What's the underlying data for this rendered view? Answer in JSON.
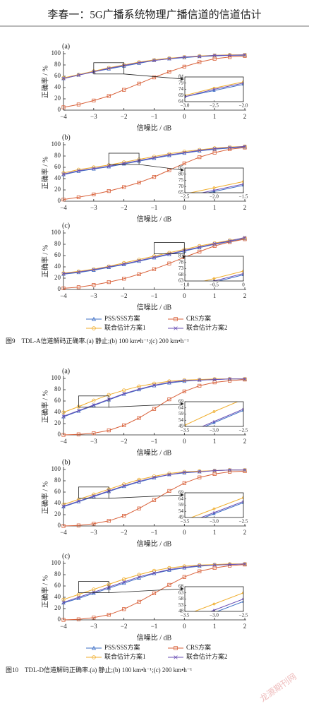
{
  "header": "李春一：5G广播系统物理广播信道的信道估计",
  "captions": [
    "图9　TDL-A信道解码正确率.(a) 静止;(b) 100 km•h⁻¹;(c) 200 km•h⁻¹",
    "图10　TDL-D信道解码正确率.(a) 静止;(b) 100 km•h⁻¹;(c) 200 km•h⁻¹"
  ],
  "watermark": "龙源期刊网",
  "chart_data": [
    {
      "type": "line",
      "label": "(a)",
      "xlabel": "信噪比 / dB",
      "ylabel": "正确率 / %",
      "x": [
        -4,
        -3.5,
        -3,
        -2.5,
        -2,
        -1.5,
        -1,
        -0.5,
        0,
        0.5,
        1,
        1.5,
        2
      ],
      "xlim": [
        -4,
        2
      ],
      "xticks": [
        {
          "value": -4,
          "label": "−4"
        },
        {
          "value": -3,
          "label": "−3"
        },
        {
          "value": -2,
          "label": "−2"
        },
        {
          "value": -1,
          "label": "−1"
        },
        0,
        1,
        2
      ],
      "ylim": [
        0,
        100
      ],
      "yticks": [
        0,
        20,
        40,
        60,
        80,
        100
      ],
      "series": [
        {
          "name": "PSS/SSS方案",
          "color": "#3d6fc6",
          "marker": "triangle",
          "values": [
            56,
            62,
            68,
            73,
            78,
            83,
            88,
            91,
            93,
            95,
            96,
            97,
            97
          ]
        },
        {
          "name": "CRS方案",
          "color": "#d9623b",
          "marker": "square",
          "values": [
            5,
            10,
            17,
            25,
            36,
            47,
            58,
            68,
            77,
            85,
            91,
            94,
            96
          ]
        },
        {
          "name": "联合估计方案1",
          "color": "#f0ae2e",
          "marker": "circle",
          "values": [
            57,
            63,
            69,
            75,
            80,
            85,
            89,
            92,
            94,
            96,
            97,
            98,
            98
          ]
        },
        {
          "name": "联合估计方案2",
          "color": "#6a4fb5",
          "marker": "x",
          "values": [
            56,
            62,
            68,
            74,
            79,
            84,
            88,
            91,
            94,
            95,
            97,
            97,
            98
          ]
        }
      ],
      "inset": {
        "xlim": [
          -3,
          -2
        ],
        "ylim": [
          64,
          84
        ],
        "xticks": [
          {
            "value": -3,
            "label": "−3.0"
          },
          {
            "value": -2.5,
            "label": "−2.5"
          },
          {
            "value": -2,
            "label": "−2.0"
          }
        ],
        "yticks": [
          64,
          69,
          74,
          79,
          84
        ]
      }
    },
    {
      "type": "line",
      "label": "(b)",
      "xlabel": "信噪比 / dB",
      "ylabel": "正确率 / %",
      "x": [
        -4,
        -3.5,
        -3,
        -2.5,
        -2,
        -1.5,
        -1,
        -0.5,
        0,
        0.5,
        1,
        1.5,
        2
      ],
      "xlim": [
        -4,
        2
      ],
      "xticks": [
        {
          "value": -4,
          "label": "−4"
        },
        {
          "value": -3,
          "label": "−3"
        },
        {
          "value": -2,
          "label": "−2"
        },
        {
          "value": -1,
          "label": "−1"
        },
        0,
        1,
        2
      ],
      "ylim": [
        0,
        100
      ],
      "yticks": [
        0,
        20,
        40,
        60,
        80,
        100
      ],
      "series": [
        {
          "name": "PSS/SSS方案",
          "color": "#3d6fc6",
          "marker": "triangle",
          "values": [
            47,
            53,
            57,
            61,
            66,
            71,
            76,
            81,
            85,
            89,
            92,
            94,
            96
          ]
        },
        {
          "name": "CRS方案",
          "color": "#d9623b",
          "marker": "square",
          "values": [
            3,
            7,
            12,
            18,
            25,
            33,
            43,
            55,
            67,
            78,
            86,
            92,
            95
          ]
        },
        {
          "name": "联合估计方案1",
          "color": "#f0ae2e",
          "marker": "circle",
          "values": [
            50,
            56,
            60,
            64,
            69,
            74,
            79,
            84,
            88,
            91,
            94,
            96,
            97
          ]
        },
        {
          "name": "联合估计方案2",
          "color": "#6a4fb5",
          "marker": "x",
          "values": [
            48,
            54,
            58,
            62,
            67,
            72,
            77,
            82,
            86,
            90,
            93,
            95,
            97
          ]
        }
      ],
      "inset": {
        "xlim": [
          -2.5,
          -1.5
        ],
        "ylim": [
          65,
          85
        ],
        "xticks": [
          {
            "value": -2.5,
            "label": "−2.5"
          },
          {
            "value": -2,
            "label": "−2.0"
          },
          {
            "value": -1.5,
            "label": "−1.5"
          }
        ],
        "yticks": [
          65,
          70,
          75,
          80,
          85
        ]
      }
    },
    {
      "type": "line",
      "label": "(c)",
      "xlabel": "信噪比 / dB",
      "ylabel": "正确率 / %",
      "x": [
        -4,
        -3.5,
        -3,
        -2.5,
        -2,
        -1.5,
        -1,
        -0.5,
        0,
        0.5,
        1,
        1.5,
        2
      ],
      "xlim": [
        -4,
        2
      ],
      "xticks": [
        {
          "value": -4,
          "label": "−4"
        },
        {
          "value": -3,
          "label": "−3"
        },
        {
          "value": -2,
          "label": "−2"
        },
        {
          "value": -1,
          "label": "−1"
        },
        0,
        1,
        2
      ],
      "ylim": [
        0,
        100
      ],
      "yticks": [
        0,
        20,
        40,
        60,
        80,
        100
      ],
      "series": [
        {
          "name": "PSS/SSS方案",
          "color": "#3d6fc6",
          "marker": "triangle",
          "values": [
            27,
            30,
            34,
            39,
            44,
            50,
            56,
            62,
            68,
            74,
            80,
            85,
            90
          ]
        },
        {
          "name": "CRS方案",
          "color": "#d9623b",
          "marker": "square",
          "values": [
            2,
            4,
            8,
            13,
            19,
            27,
            36,
            46,
            57,
            67,
            77,
            84,
            89
          ]
        },
        {
          "name": "联合估计方案1",
          "color": "#f0ae2e",
          "marker": "circle",
          "values": [
            29,
            32,
            36,
            41,
            47,
            53,
            59,
            65,
            71,
            77,
            82,
            87,
            91
          ]
        },
        {
          "name": "联合估计方案2",
          "color": "#6a4fb5",
          "marker": "x",
          "values": [
            28,
            31,
            35,
            40,
            45,
            51,
            57,
            63,
            69,
            75,
            81,
            86,
            92
          ]
        }
      ],
      "inset": {
        "xlim": [
          -1,
          0
        ],
        "ylim": [
          63,
          83
        ],
        "xticks": [
          {
            "value": -1,
            "label": "−1.0"
          },
          {
            "value": -0.5,
            "label": "−0.5"
          },
          0
        ],
        "yticks": [
          63,
          68,
          73,
          78,
          83
        ]
      }
    },
    {
      "type": "line",
      "label": "(a)",
      "xlabel": "信噪比 / dB",
      "ylabel": "正确率 / %",
      "x": [
        -4,
        -3.5,
        -3,
        -2.5,
        -2,
        -1.5,
        -1,
        -0.5,
        0,
        0.5,
        1,
        1.5,
        2
      ],
      "xlim": [
        -4,
        2
      ],
      "xticks": [
        {
          "value": -4,
          "label": "−4"
        },
        {
          "value": -3,
          "label": "−3"
        },
        {
          "value": -2,
          "label": "−2"
        },
        {
          "value": -1,
          "label": "−1"
        },
        0,
        1,
        2
      ],
      "ylim": [
        0,
        100
      ],
      "yticks": [
        0,
        20,
        40,
        60,
        80,
        100
      ],
      "series": [
        {
          "name": "PSS/SSS方案",
          "color": "#3d6fc6",
          "marker": "triangle",
          "values": [
            32,
            42,
            52,
            62,
            72,
            80,
            87,
            92,
            95,
            97,
            98,
            99,
            99
          ]
        },
        {
          "name": "CRS方案",
          "color": "#d9623b",
          "marker": "square",
          "values": [
            0,
            1,
            3,
            8,
            17,
            30,
            46,
            63,
            77,
            87,
            93,
            96,
            98
          ]
        },
        {
          "name": "联合估计方案1",
          "color": "#f0ae2e",
          "marker": "circle",
          "values": [
            40,
            50,
            61,
            71,
            79,
            86,
            91,
            95,
            97,
            98,
            99,
            99,
            99
          ]
        },
        {
          "name": "联合估计方案2",
          "color": "#6a4fb5",
          "marker": "x",
          "values": [
            33,
            43,
            53,
            63,
            73,
            81,
            88,
            93,
            96,
            97,
            98,
            99,
            99
          ]
        }
      ],
      "inset": {
        "xlim": [
          -3.5,
          -2.5
        ],
        "ylim": [
          49,
          69
        ],
        "xticks": [
          {
            "value": -3.5,
            "label": "−3.5"
          },
          {
            "value": -3,
            "label": "−3.0"
          },
          {
            "value": -2.5,
            "label": "−2.5"
          }
        ],
        "yticks": [
          49,
          54,
          59,
          64,
          69
        ]
      }
    },
    {
      "type": "line",
      "label": "(b)",
      "xlabel": "信噪比 / dB",
      "ylabel": "正确率 / %",
      "x": [
        -4,
        -3.5,
        -3,
        -2.5,
        -2,
        -1.5,
        -1,
        -0.5,
        0,
        0.5,
        1,
        1.5,
        2
      ],
      "xlim": [
        -4,
        2
      ],
      "xticks": [
        {
          "value": -4,
          "label": "−4"
        },
        {
          "value": -3,
          "label": "−3"
        },
        {
          "value": -2,
          "label": "−2"
        },
        {
          "value": -1,
          "label": "−1"
        },
        0,
        1,
        2
      ],
      "ylim": [
        0,
        100
      ],
      "yticks": [
        0,
        20,
        40,
        60,
        80,
        100
      ],
      "series": [
        {
          "name": "PSS/SSS方案",
          "color": "#3d6fc6",
          "marker": "triangle",
          "values": [
            34,
            43,
            52,
            61,
            70,
            78,
            85,
            91,
            94,
            96,
            98,
            99,
            99
          ]
        },
        {
          "name": "CRS方案",
          "color": "#d9623b",
          "marker": "square",
          "values": [
            0,
            1,
            4,
            9,
            18,
            31,
            46,
            62,
            76,
            86,
            92,
            96,
            97
          ]
        },
        {
          "name": "联合估计方案1",
          "color": "#f0ae2e",
          "marker": "circle",
          "values": [
            38,
            47,
            56,
            65,
            74,
            82,
            88,
            93,
            96,
            97,
            98,
            99,
            99
          ]
        },
        {
          "name": "联合估计方案2",
          "color": "#6a4fb5",
          "marker": "x",
          "values": [
            35,
            44,
            53,
            62,
            71,
            79,
            86,
            91,
            95,
            96,
            98,
            99,
            99
          ]
        }
      ],
      "inset": {
        "xlim": [
          -3.5,
          -2.5
        ],
        "ylim": [
          49,
          69
        ],
        "xticks": [
          {
            "value": -3.5,
            "label": "−3.5"
          },
          {
            "value": -3,
            "label": "−3.0"
          },
          {
            "value": -2.5,
            "label": "−2.5"
          }
        ],
        "yticks": [
          49,
          54,
          59,
          64,
          69
        ]
      }
    },
    {
      "type": "line",
      "label": "(c)",
      "xlabel": "信噪比 / dB",
      "ylabel": "正确率 / %",
      "x": [
        -4,
        -3.5,
        -3,
        -2.5,
        -2,
        -1.5,
        -1,
        -0.5,
        0,
        0.5,
        1,
        1.5,
        2
      ],
      "xlim": [
        -4,
        2
      ],
      "xticks": [
        {
          "value": -4,
          "label": "−4"
        },
        {
          "value": -3,
          "label": "−3"
        },
        {
          "value": -2,
          "label": "−2"
        },
        {
          "value": -1,
          "label": "−1"
        },
        0,
        1,
        2
      ],
      "ylim": [
        0,
        100
      ],
      "yticks": [
        0,
        20,
        40,
        60,
        80,
        100
      ],
      "series": [
        {
          "name": "PSS/SSS方案",
          "color": "#3d6fc6",
          "marker": "triangle",
          "values": [
            30,
            38,
            47,
            56,
            65,
            74,
            82,
            88,
            92,
            95,
            97,
            98,
            99
          ]
        },
        {
          "name": "CRS方案",
          "color": "#d9623b",
          "marker": "square",
          "values": [
            0,
            1,
            4,
            9,
            19,
            32,
            47,
            62,
            76,
            86,
            92,
            96,
            98
          ]
        },
        {
          "name": "联合估计方案1",
          "color": "#f0ae2e",
          "marker": "circle",
          "values": [
            36,
            45,
            54,
            63,
            72,
            80,
            87,
            92,
            95,
            97,
            98,
            99,
            99
          ]
        },
        {
          "name": "联合估计方案2",
          "color": "#6a4fb5",
          "marker": "x",
          "values": [
            31,
            40,
            49,
            58,
            67,
            76,
            83,
            89,
            93,
            96,
            97,
            98,
            99
          ]
        }
      ],
      "inset": {
        "xlim": [
          -3.5,
          -2.5
        ],
        "ylim": [
          48,
          68
        ],
        "xticks": [
          {
            "value": -3.5,
            "label": "−3.5"
          },
          {
            "value": -3,
            "label": "−3.0"
          },
          {
            "value": -2.5,
            "label": "−2.5"
          }
        ],
        "yticks": [
          48,
          53,
          58,
          63,
          68
        ]
      }
    }
  ]
}
